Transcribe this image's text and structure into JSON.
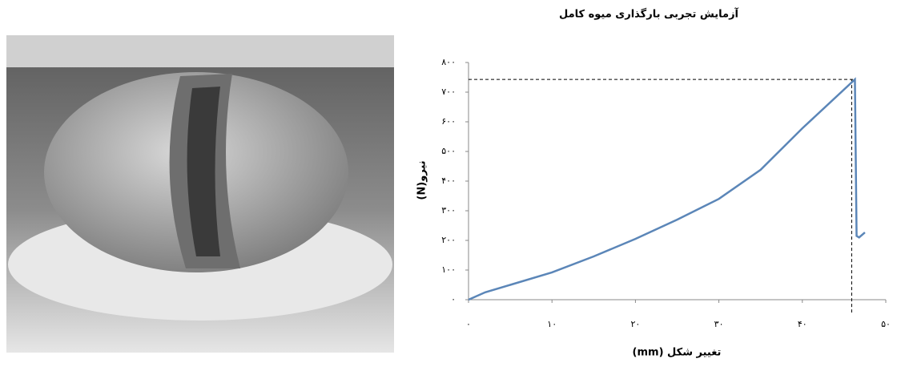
{
  "chart_data": {
    "type": "line",
    "title": "آزمایش تجربی بارگذاری میوه کامل",
    "x_label": "تغییر شکل (mm)",
    "y_label": "نیرو(N)",
    "x": [
      0,
      2,
      5,
      10,
      15,
      20,
      25,
      30,
      35,
      40,
      46.3,
      46.5,
      46.8,
      47.5
    ],
    "series": [
      {
        "color": "#5b86b8",
        "values": [
          0,
          25,
          50,
          92,
          146,
          205,
          270,
          340,
          438,
          578,
          743,
          215,
          210,
          227
        ]
      }
    ],
    "xlim": [
      0,
      50
    ],
    "ylim": [
      0,
      800
    ],
    "xticks": [
      {
        "value": 0,
        "label": "۰"
      },
      {
        "value": 10,
        "label": "۱۰"
      },
      {
        "value": 20,
        "label": "۲۰"
      },
      {
        "value": 30,
        "label": "۳۰"
      },
      {
        "value": 40,
        "label": "۴۰"
      },
      {
        "value": 50,
        "label": "۵۰"
      }
    ],
    "yticks": [
      {
        "value": 0,
        "label": "۰"
      },
      {
        "value": 100,
        "label": "۱۰۰"
      },
      {
        "value": 200,
        "label": "۲۰۰"
      },
      {
        "value": 300,
        "label": "۳۰۰"
      },
      {
        "value": 400,
        "label": "۴۰۰"
      },
      {
        "value": 500,
        "label": "۵۰۰"
      },
      {
        "value": 600,
        "label": "۶۰۰"
      },
      {
        "value": 700,
        "label": "۷۰۰"
      },
      {
        "value": 800,
        "label": "۸۰۰"
      }
    ]
  }
}
